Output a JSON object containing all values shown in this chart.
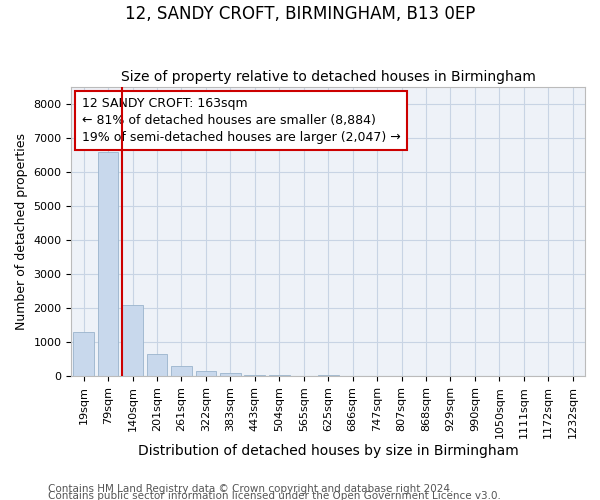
{
  "title": "12, SANDY CROFT, BIRMINGHAM, B13 0EP",
  "subtitle": "Size of property relative to detached houses in Birmingham",
  "xlabel": "Distribution of detached houses by size in Birmingham",
  "ylabel": "Number of detached properties",
  "footnote1": "Contains HM Land Registry data © Crown copyright and database right 2024.",
  "footnote2": "Contains public sector information licensed under the Open Government Licence v3.0.",
  "bar_labels": [
    "19sqm",
    "79sqm",
    "140sqm",
    "201sqm",
    "261sqm",
    "322sqm",
    "383sqm",
    "443sqm",
    "504sqm",
    "565sqm",
    "625sqm",
    "686sqm",
    "747sqm",
    "807sqm",
    "868sqm",
    "929sqm",
    "990sqm",
    "1050sqm",
    "1111sqm",
    "1172sqm",
    "1232sqm"
  ],
  "bar_values": [
    1300,
    6600,
    2100,
    650,
    300,
    150,
    100,
    50,
    50,
    0,
    50,
    0,
    0,
    0,
    0,
    0,
    0,
    0,
    0,
    0,
    0
  ],
  "bar_color": "#c8d8ec",
  "bar_edge_color": "#9ab4cc",
  "vline_color": "#cc0000",
  "vline_x_index": 2,
  "annotation_line1": "12 SANDY CROFT: 163sqm",
  "annotation_line2": "← 81% of detached houses are smaller (8,884)",
  "annotation_line3": "19% of semi-detached houses are larger (2,047) →",
  "annotation_box_color": "#cc0000",
  "ylim": [
    0,
    8500
  ],
  "grid_color": "#c8d4e4",
  "background_color": "#eef2f8",
  "title_fontsize": 12,
  "subtitle_fontsize": 10,
  "annot_fontsize": 9,
  "xlabel_fontsize": 10,
  "ylabel_fontsize": 9,
  "tick_fontsize": 8,
  "footnote_fontsize": 7.5
}
